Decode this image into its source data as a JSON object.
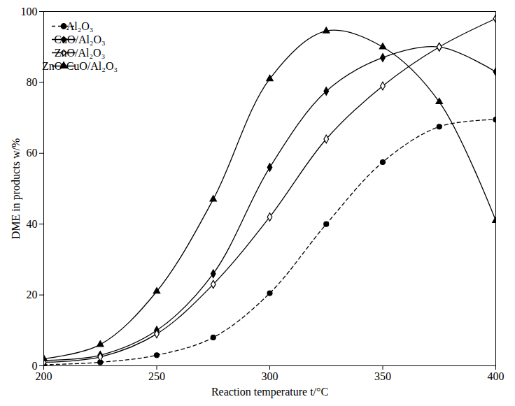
{
  "chart_data": {
    "type": "line",
    "x_label": "Reaction temperature t/°C",
    "y_label": "DME in products w/%",
    "x": [
      200,
      225,
      250,
      275,
      300,
      325,
      350,
      375,
      400
    ],
    "xlim": [
      200,
      400
    ],
    "xticks": [
      200,
      250,
      300,
      350,
      400
    ],
    "ylim": [
      0,
      100
    ],
    "yticks": [
      0,
      20,
      40,
      60,
      80,
      100
    ],
    "grid": false,
    "legend": "upper left",
    "series": [
      {
        "name": "Al₂O₃",
        "color": "#000000",
        "marker": "circle",
        "line_style": "dashed",
        "values": [
          0.3,
          1,
          3,
          8,
          20.5,
          40,
          57.5,
          67.5,
          69.5
        ]
      },
      {
        "name": "CuO/Al₂O₃",
        "color": "#000000",
        "marker": "diamond",
        "line_style": "solid",
        "values": [
          1.5,
          3,
          10,
          26,
          56,
          77.5,
          87,
          90,
          83
        ]
      },
      {
        "name": "ZnO/Al₂O₃",
        "color": "#000000",
        "marker": "open_diamond",
        "line_style": "solid",
        "values": [
          1,
          2.5,
          9,
          23,
          42,
          64,
          79,
          90,
          98
        ]
      },
      {
        "name": "ZnO-CuO/Al₂O₃",
        "color": "#000000",
        "marker": "triangle",
        "line_style": "solid",
        "values": [
          2,
          6,
          21,
          47,
          81,
          94.5,
          90,
          74.5,
          41
        ]
      }
    ]
  }
}
